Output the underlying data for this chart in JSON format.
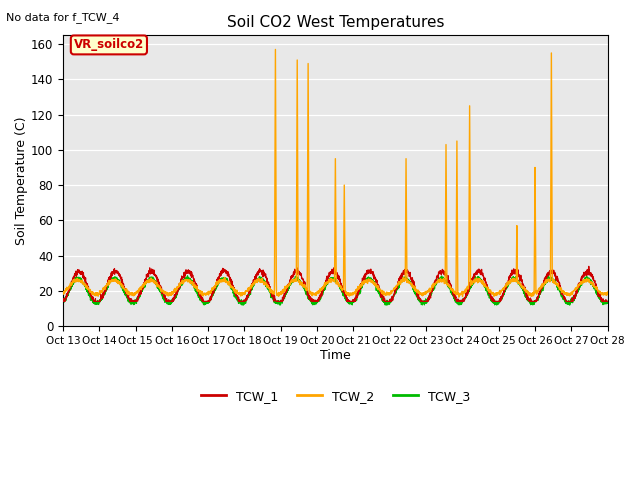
{
  "title": "Soil CO2 West Temperatures",
  "xlabel": "Time",
  "ylabel": "Soil Temperature (C)",
  "no_data_text": "No data for f_TCW_4",
  "annotation_text": "VR_soilco2",
  "ylim": [
    0,
    165
  ],
  "yticks": [
    0,
    20,
    40,
    60,
    80,
    100,
    120,
    140,
    160
  ],
  "xtick_labels": [
    "Oct 13",
    "Oct 14",
    "Oct 15",
    "Oct 16",
    "Oct 17",
    "Oct 18",
    "Oct 19",
    "Oct 20",
    "Oct 21",
    "Oct 22",
    "Oct 23",
    "Oct 24",
    "Oct 25",
    "Oct 26",
    "Oct 27",
    "Oct 28"
  ],
  "line_colors": {
    "TCW_1": "#cc0000",
    "TCW_2": "#ffa500",
    "TCW_3": "#00bb00"
  },
  "background_color": "#e8e8e8",
  "annotation_box_facecolor": "#ffffcc",
  "annotation_box_edgecolor": "#cc0000",
  "fig_width": 6.4,
  "fig_height": 4.8,
  "dpi": 100
}
